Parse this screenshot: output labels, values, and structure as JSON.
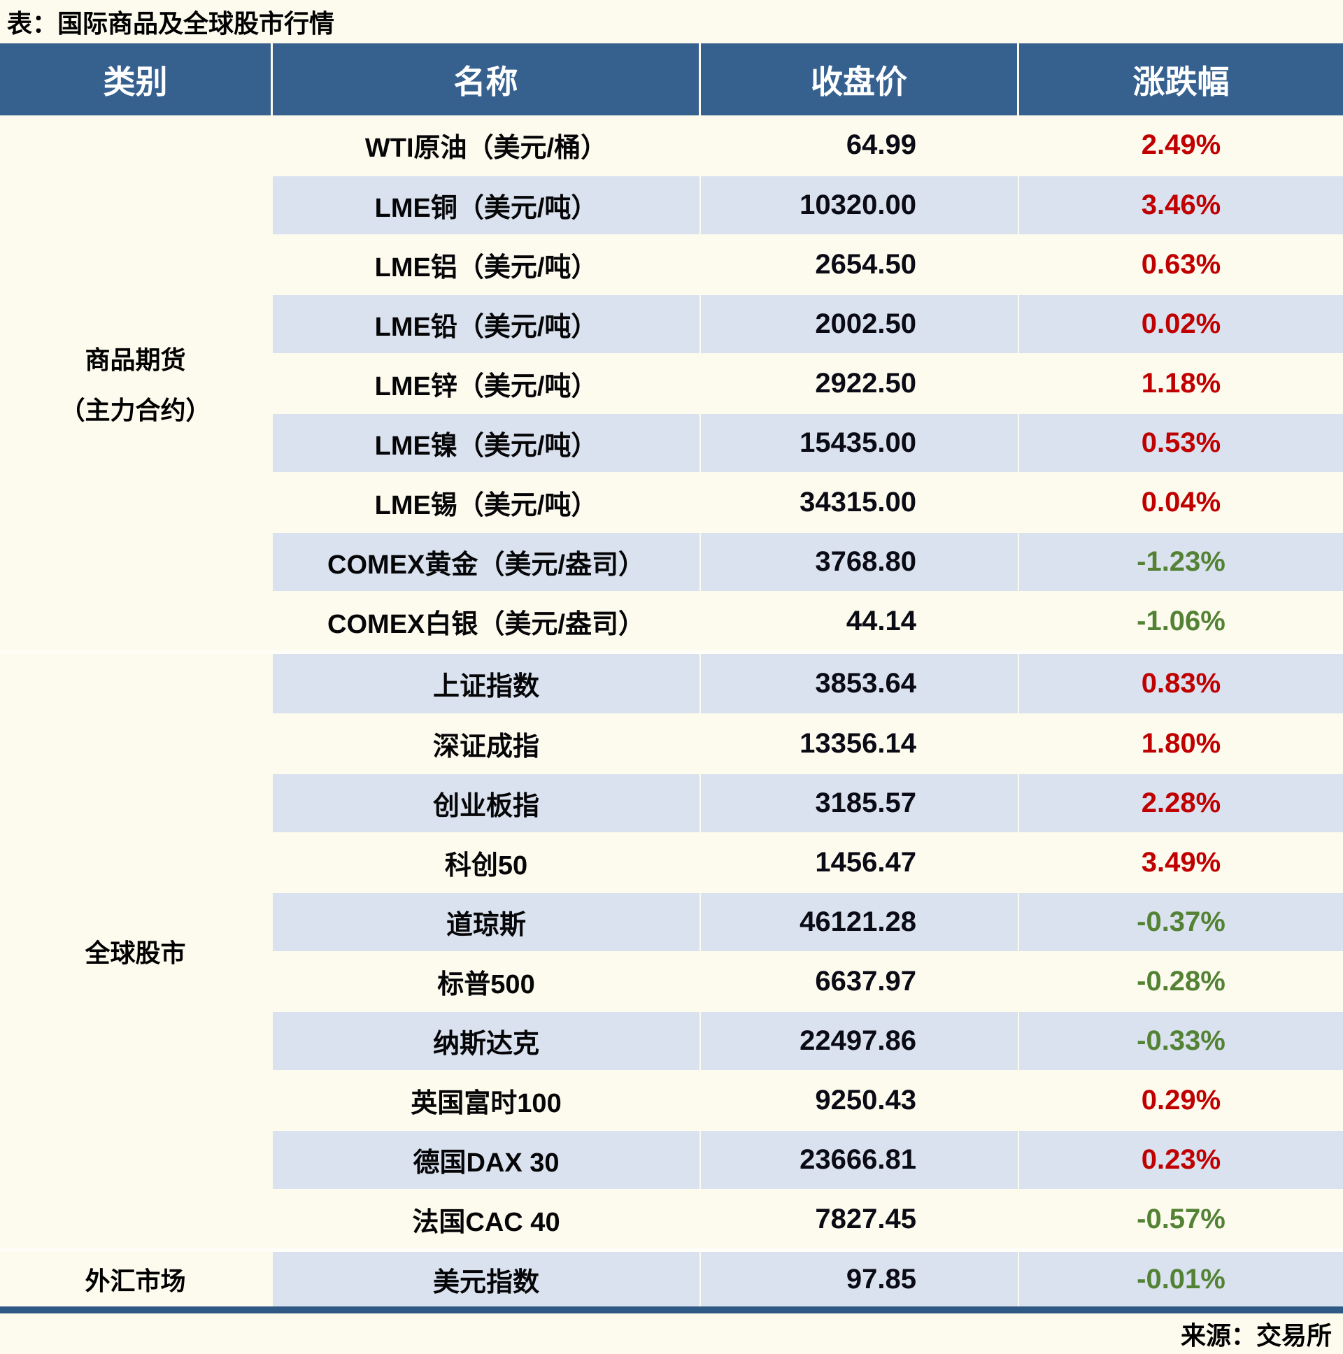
{
  "title": "表：国际商品及全球股市行情",
  "source": "来源：交易所",
  "colors": {
    "header_bg": "#36618f",
    "row_alt_bg": "#d9e2ee",
    "page_bg": "#fdfbee",
    "up_text": "#c00000",
    "down_text": "#548235",
    "bottom_border": "#2e5984"
  },
  "table": {
    "headers": [
      "类别",
      "名称",
      "收盘价",
      "涨跌幅"
    ],
    "sections": [
      {
        "category": "商品期货（主力合约）",
        "category_lines": [
          "商品期货",
          "（主力合约）"
        ],
        "rows": [
          {
            "name": "WTI原油（美元/桶）",
            "close": "64.99",
            "change": "2.49%",
            "direction": "up"
          },
          {
            "name": "LME铜（美元/吨）",
            "close": "10320.00",
            "change": "3.46%",
            "direction": "up"
          },
          {
            "name": "LME铝（美元/吨）",
            "close": "2654.50",
            "change": "0.63%",
            "direction": "up"
          },
          {
            "name": "LME铅（美元/吨）",
            "close": "2002.50",
            "change": "0.02%",
            "direction": "up"
          },
          {
            "name": "LME锌（美元/吨）",
            "close": "2922.50",
            "change": "1.18%",
            "direction": "up"
          },
          {
            "name": "LME镍（美元/吨）",
            "close": "15435.00",
            "change": "0.53%",
            "direction": "up"
          },
          {
            "name": "LME锡（美元/吨）",
            "close": "34315.00",
            "change": "0.04%",
            "direction": "up"
          },
          {
            "name": "COMEX黄金（美元/盎司）",
            "close": "3768.80",
            "change": "-1.23%",
            "direction": "down"
          },
          {
            "name": "COMEX白银（美元/盎司）",
            "close": "44.14",
            "change": "-1.06%",
            "direction": "down"
          }
        ]
      },
      {
        "category": "全球股市",
        "category_lines": [
          "全球股市"
        ],
        "rows": [
          {
            "name": "上证指数",
            "close": "3853.64",
            "change": "0.83%",
            "direction": "up"
          },
          {
            "name": "深证成指",
            "close": "13356.14",
            "change": "1.80%",
            "direction": "up"
          },
          {
            "name": "创业板指",
            "close": "3185.57",
            "change": "2.28%",
            "direction": "up"
          },
          {
            "name": "科创50",
            "close": "1456.47",
            "change": "3.49%",
            "direction": "up"
          },
          {
            "name": "道琼斯",
            "close": "46121.28",
            "change": "-0.37%",
            "direction": "down"
          },
          {
            "name": "标普500",
            "close": "6637.97",
            "change": "-0.28%",
            "direction": "down"
          },
          {
            "name": "纳斯达克",
            "close": "22497.86",
            "change": "-0.33%",
            "direction": "down"
          },
          {
            "name": "英国富时100",
            "close": "9250.43",
            "change": "0.29%",
            "direction": "up"
          },
          {
            "name": "德国DAX 30",
            "close": "23666.81",
            "change": "0.23%",
            "direction": "up"
          },
          {
            "name": "法国CAC 40",
            "close": "7827.45",
            "change": "-0.57%",
            "direction": "down"
          }
        ]
      },
      {
        "category": "外汇市场",
        "category_lines": [
          "外汇市场"
        ],
        "rows": [
          {
            "name": "美元指数",
            "close": "97.85",
            "change": "-0.01%",
            "direction": "down"
          }
        ]
      }
    ]
  },
  "chart_data": {
    "type": "table",
    "title": "表：国际商品及全球股市行情",
    "columns": [
      "类别",
      "名称",
      "收盘价",
      "涨跌幅"
    ],
    "rows": [
      [
        "商品期货（主力合约）",
        "WTI原油（美元/桶）",
        64.99,
        "2.49%"
      ],
      [
        "商品期货（主力合约）",
        "LME铜（美元/吨）",
        10320.0,
        "3.46%"
      ],
      [
        "商品期货（主力合约）",
        "LME铝（美元/吨）",
        2654.5,
        "0.63%"
      ],
      [
        "商品期货（主力合约）",
        "LME铅（美元/吨）",
        2002.5,
        "0.02%"
      ],
      [
        "商品期货（主力合约）",
        "LME锌（美元/吨）",
        2922.5,
        "1.18%"
      ],
      [
        "商品期货（主力合约）",
        "LME镍（美元/吨）",
        15435.0,
        "0.53%"
      ],
      [
        "商品期货（主力合约）",
        "LME锡（美元/吨）",
        34315.0,
        "0.04%"
      ],
      [
        "商品期货（主力合约）",
        "COMEX黄金（美元/盎司）",
        3768.8,
        "-1.23%"
      ],
      [
        "商品期货（主力合约）",
        "COMEX白银（美元/盎司）",
        44.14,
        "-1.06%"
      ],
      [
        "全球股市",
        "上证指数",
        3853.64,
        "0.83%"
      ],
      [
        "全球股市",
        "深证成指",
        13356.14,
        "1.80%"
      ],
      [
        "全球股市",
        "创业板指",
        3185.57,
        "2.28%"
      ],
      [
        "全球股市",
        "科创50",
        1456.47,
        "3.49%"
      ],
      [
        "全球股市",
        "道琼斯",
        46121.28,
        "-0.37%"
      ],
      [
        "全球股市",
        "标普500",
        6637.97,
        "-0.28%"
      ],
      [
        "全球股市",
        "纳斯达克",
        22497.86,
        "-0.33%"
      ],
      [
        "全球股市",
        "英国富时100",
        9250.43,
        "0.29%"
      ],
      [
        "全球股市",
        "德国DAX 30",
        23666.81,
        "0.23%"
      ],
      [
        "全球股市",
        "法国CAC 40",
        7827.45,
        "-0.57%"
      ],
      [
        "外汇市场",
        "美元指数",
        97.85,
        "-0.01%"
      ]
    ],
    "notes": "positive change = red (up), negative change = green (down)",
    "source": "来源：交易所"
  }
}
